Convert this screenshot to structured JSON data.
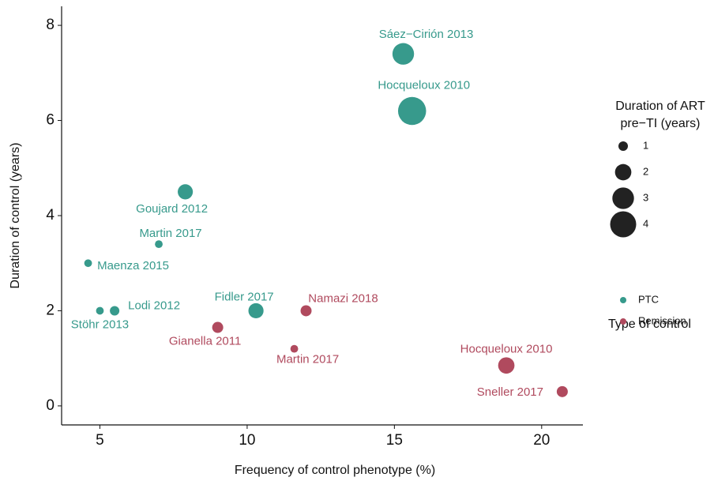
{
  "chart_data": {
    "type": "scatter",
    "x_label": "Frequency of control phenotype (%)",
    "y_label": "Duration of control (years)",
    "xlim": [
      3.7,
      21.4
    ],
    "xticks": [
      5,
      10,
      15,
      20
    ],
    "ylim": [
      -0.4,
      8.4
    ],
    "yticks": [
      0,
      2,
      4,
      6,
      8
    ],
    "grid": false,
    "series": [
      {
        "name": "PTC",
        "color": "#379a8c",
        "labels": [
          "Sáez−Cirión 2013",
          "Hocqueloux 2010",
          "Goujard 2012",
          "Martin 2017",
          "Maenza 2015",
          "Lodi 2012",
          "Stöhr 2013",
          "Fidler 2017"
        ],
        "x": [
          15.3,
          15.6,
          7.9,
          7.0,
          4.6,
          5.5,
          5.0,
          10.3
        ],
        "values": [
          7.4,
          6.2,
          4.5,
          3.4,
          3.0,
          2.0,
          2.0,
          2.0
        ],
        "sizes": [
          3,
          4.5,
          1.8,
          0.8,
          0.8,
          1,
          0.8,
          1.8
        ]
      },
      {
        "name": "Remission",
        "color": "#b04a5e",
        "labels": [
          "Namazi 2018",
          "Gianella 2011",
          "Martin 2017",
          "Hocqueloux 2010",
          "Sneller 2017"
        ],
        "x": [
          12.0,
          9.0,
          11.6,
          18.8,
          20.7
        ],
        "values": [
          2.0,
          1.65,
          1.2,
          0.85,
          0.3
        ],
        "sizes": [
          1.2,
          1.2,
          0.8,
          2,
          1.2
        ]
      }
    ],
    "size_legend": {
      "title": [
        "Duration of ART",
        "pre−TI (years)"
      ],
      "values": [
        1,
        2,
        3,
        4
      ]
    },
    "color_legend_title": "Type of control",
    "legend_position": "right"
  }
}
